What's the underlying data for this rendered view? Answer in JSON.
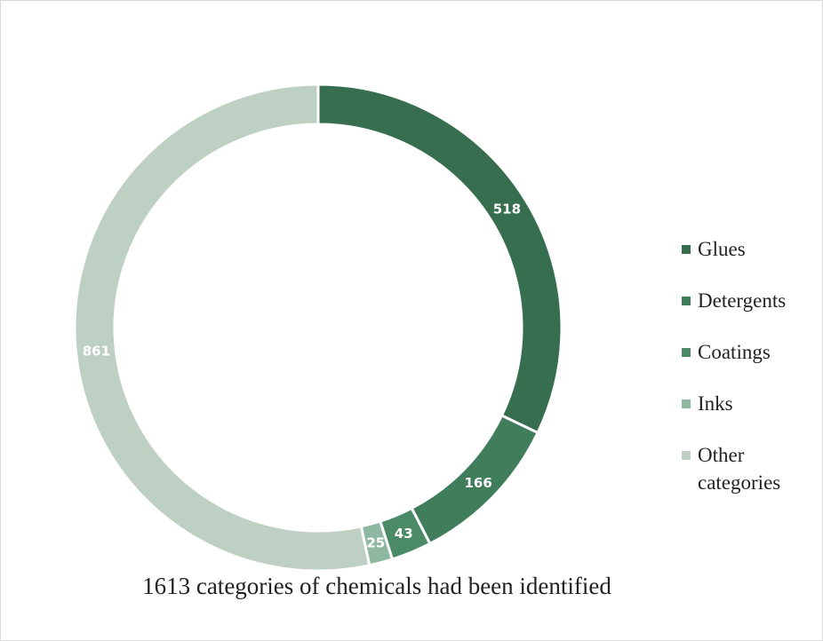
{
  "chart_data": {
    "type": "pie",
    "variant": "donut",
    "categories": [
      "Glues",
      "Detergents",
      "Coatings",
      "Inks",
      "Other categories"
    ],
    "values": [
      518,
      166,
      43,
      25,
      861
    ],
    "colors": [
      "#376e4f",
      "#3f7d5b",
      "#4a8a66",
      "#8fb8a2",
      "#bdd0c3"
    ],
    "legend_position": "right",
    "caption": "1613 categories of chemicals had been identified"
  }
}
